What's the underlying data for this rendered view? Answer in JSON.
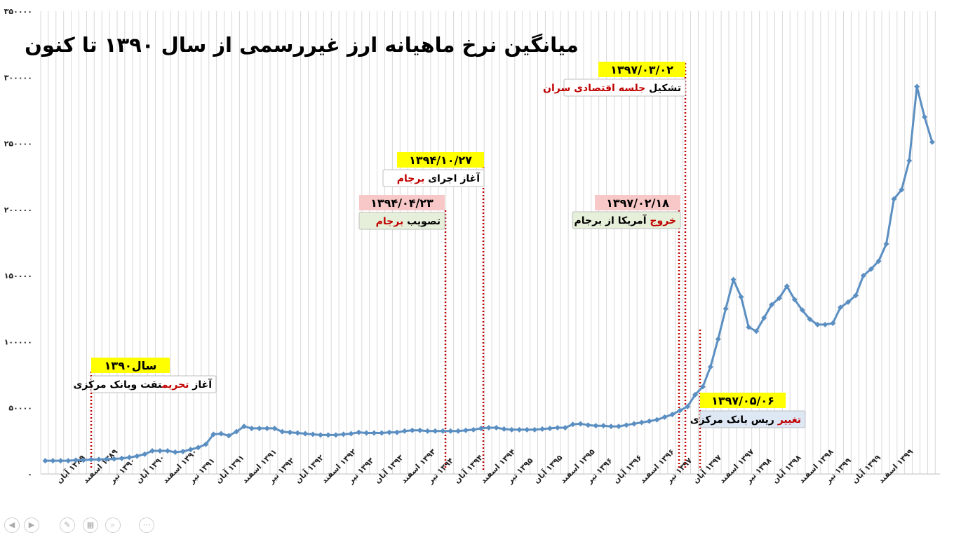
{
  "chart_data": {
    "type": "line",
    "title": "میانگین نرخ ماهیانه ارز غیررسمی از سال ۱۳۹۰ تا کنون",
    "ylim": [
      0,
      350000
    ],
    "yticks": [
      "۰",
      "۵۰۰۰۰",
      "۱۰۰۰۰۰",
      "۱۵۰۰۰۰",
      "۲۰۰۰۰۰",
      "۲۵۰۰۰۰",
      "۳۰۰۰۰۰",
      "۳۵۰۰۰۰"
    ],
    "ytick_values": [
      0,
      50000,
      100000,
      150000,
      200000,
      250000,
      300000,
      350000
    ],
    "xticks": [
      "۱۳۸۹ آبان",
      "۱۳۸۹ اسفند",
      "۱۳۹۰ تیر",
      "۱۳۹۰ آبان",
      "۱۳۹۰ اسفند",
      "۱۳۹۱ تیر",
      "۱۳۹۱ آبان",
      "۱۳۹۱ اسفند",
      "۱۳۹۲ تیر",
      "۱۳۹۲ آبان",
      "۱۳۹۲ اسفند",
      "۱۳۹۳ تیر",
      "۱۳۹۳ آبان",
      "۱۳۹۳ اسفند",
      "۱۳۹۴ تیر",
      "۱۳۹۴ آبان",
      "۱۳۹۴ اسفند",
      "۱۳۹۵ تیر",
      "۱۳۹۵ آبان",
      "۱۳۹۵ اسفند",
      "۱۳۹۶ تیر",
      "۱۳۹۶ آبان",
      "۱۳۹۶ اسفند",
      "۱۳۹۷ تیر",
      "۱۳۹۷ آبان",
      "۱۳۹۷ اسفند",
      "۱۳۹۸ تیر",
      "۱۳۹۸ آبان",
      "۱۳۹۸ اسفند",
      "۱۳۹۹ تیر",
      "۱۳۹۹ آبان",
      "۱۳۹۹ اسفند"
    ],
    "series": [
      {
        "color": "#5b8fc2",
        "values": [
          10000,
          10000,
          10000,
          10000,
          10500,
          10500,
          11000,
          11000,
          11200,
          11400,
          11800,
          12500,
          13500,
          15000,
          17500,
          17500,
          17500,
          16500,
          17000,
          18500,
          20000,
          22500,
          30000,
          30500,
          29000,
          32000,
          36000,
          34500,
          34500,
          34500,
          34500,
          32000,
          31500,
          31000,
          30500,
          30000,
          29500,
          29500,
          29500,
          30000,
          30500,
          31500,
          31000,
          31000,
          31000,
          31500,
          31500,
          32500,
          33000,
          33000,
          32500,
          32500,
          32500,
          32500,
          32500,
          33000,
          33500,
          34500,
          35000,
          35000,
          34000,
          33500,
          33500,
          33500,
          33500,
          34000,
          34500,
          35000,
          35000,
          37500,
          38000,
          37000,
          36500,
          36500,
          36000,
          36000,
          37000,
          38000,
          39000,
          40000,
          41000,
          43000,
          45000,
          48000,
          51000,
          60000,
          66000,
          81000,
          102000,
          125000,
          147000,
          134000,
          111000,
          108000,
          118000,
          128000,
          133000,
          142000,
          132000,
          124000,
          117000,
          113000,
          113000,
          114000,
          126000,
          130000,
          135000,
          150000,
          155000,
          161000,
          174000,
          208000,
          215000,
          237000,
          293000,
          270000,
          251000
        ],
        "marker": "diamond"
      }
    ],
    "grid": "vertical",
    "annotations": [
      {
        "date": "سال۱۳۹۰",
        "text_parts": [
          {
            "t": "آغاز ",
            "c": "#000"
          },
          {
            "t": "تحریم",
            "c": "#c00000"
          },
          {
            "t": "تقت وبانک مرکزی",
            "c": "#000"
          }
        ],
        "date_bg": "#ffff00",
        "text_bg": "#ffffff"
      },
      {
        "date": "۱۳۹۴/۰۴/۲۳",
        "text_parts": [
          {
            "t": "تصویب ",
            "c": "#000"
          },
          {
            "t": "برجام",
            "c": "#c00000"
          }
        ],
        "date_bg": "#f8c7c7",
        "text_bg": "#e6efd9"
      },
      {
        "date": "۱۳۹۴/۱۰/۲۷",
        "text_parts": [
          {
            "t": "آغاز اجرای ",
            "c": "#000"
          },
          {
            "t": "برجام",
            "c": "#c00000"
          }
        ],
        "date_bg": "#ffff00",
        "text_bg": "#ffffff"
      },
      {
        "date": "۱۳۹۷/۰۲/۱۸",
        "text_parts": [
          {
            "t": "خروج",
            "c": "#c00000"
          },
          {
            "t": " آمریکا از برجام",
            "c": "#000"
          }
        ],
        "date_bg": "#f8c7c7",
        "text_bg": "#e6efd9"
      },
      {
        "date": "۱۳۹۷/۰۳/۰۲",
        "text_parts": [
          {
            "t": "تشکیل ",
            "c": "#000"
          },
          {
            "t": "جلسه اقتصادی سران",
            "c": "#c00000"
          }
        ],
        "date_bg": "#ffff00",
        "text_bg": "#ffffff"
      },
      {
        "date": "۱۳۹۷/۰۵/۰۶",
        "text_parts": [
          {
            "t": "تغییر",
            "c": "#c00000"
          },
          {
            "t": " ریس بانک مرکزی",
            "c": "#000"
          }
        ],
        "date_bg": "#ffff00",
        "text_bg": "#dde8f4"
      }
    ],
    "annotation_line_color": "#c00000"
  },
  "toolbar": {
    "icons": [
      "arrow-left-icon",
      "arrow-right-icon",
      "pen-icon",
      "layout-icon",
      "search-icon",
      "more-icon"
    ]
  }
}
